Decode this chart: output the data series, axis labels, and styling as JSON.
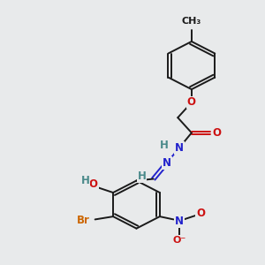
{
  "bg_color": "#e8eaeb",
  "bond_color": "#1a1a1a",
  "bond_width": 1.4,
  "dbo": 0.055,
  "atom_colors": {
    "C": "#1a1a1a",
    "H": "#4a8a8a",
    "N": "#2222cc",
    "O": "#cc1111",
    "Br": "#cc6600"
  },
  "fs": 8.5,
  "fs_small": 7.5
}
